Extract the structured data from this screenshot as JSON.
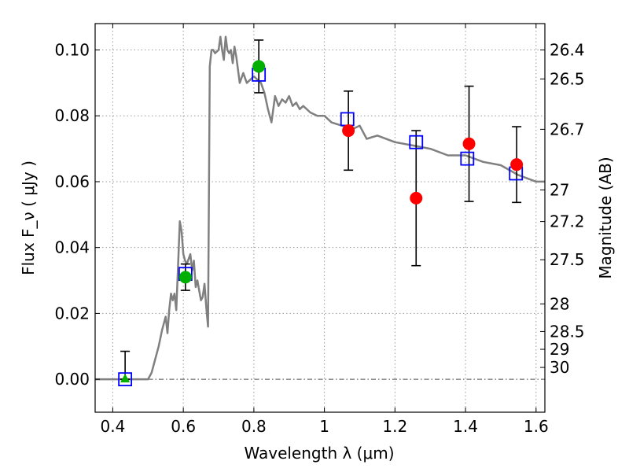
{
  "chart_data": {
    "type": "scatter",
    "xlabel": "Wavelength  λ (μm)",
    "ylabel": "Flux  F_ν  ( μJy )",
    "ylabel_right": "Magnitude (AB)",
    "xlim": [
      0.35,
      1.625
    ],
    "ylim": [
      -0.01,
      0.108
    ],
    "grid": true,
    "x_ticks": [
      {
        "value": 0.4,
        "label": "0.4"
      },
      {
        "value": 0.6,
        "label": "0.6"
      },
      {
        "value": 0.8,
        "label": "0.8"
      },
      {
        "value": 1.0,
        "label": "1"
      },
      {
        "value": 1.2,
        "label": "1.2"
      },
      {
        "value": 1.4,
        "label": "1.4"
      },
      {
        "value": 1.6,
        "label": "1.6"
      }
    ],
    "y_ticks": [
      {
        "value": 0.0,
        "label": "0.00"
      },
      {
        "value": 0.02,
        "label": "0.02"
      },
      {
        "value": 0.04,
        "label": "0.04"
      },
      {
        "value": 0.06,
        "label": "0.06"
      },
      {
        "value": 0.08,
        "label": "0.08"
      },
      {
        "value": 0.1,
        "label": "0.10"
      }
    ],
    "right_ticks": [
      {
        "label": "26.4",
        "flux": 0.1
      },
      {
        "label": "26.5",
        "flux": 0.0912
      },
      {
        "label": "26.7",
        "flux": 0.0759
      },
      {
        "label": "27",
        "flux": 0.0575
      },
      {
        "label": "27.2",
        "flux": 0.0479
      },
      {
        "label": "27.5",
        "flux": 0.0363
      },
      {
        "label": "28",
        "flux": 0.0229
      },
      {
        "label": "28.5",
        "flux": 0.0145
      },
      {
        "label": "29",
        "flux": 0.0091
      },
      {
        "label": "30",
        "flux": 0.0036
      }
    ],
    "zero_line": 0.0,
    "colors": {
      "model": "#808080",
      "model_points": "#0000ff",
      "green": "#00b000",
      "red": "#ff0000",
      "errorbar": "#000000"
    },
    "model_spectrum": {
      "x": [
        0.35,
        0.5,
        0.51,
        0.52,
        0.53,
        0.54,
        0.55,
        0.555,
        0.56,
        0.565,
        0.57,
        0.575,
        0.58,
        0.585,
        0.59,
        0.595,
        0.6,
        0.605,
        0.61,
        0.62,
        0.625,
        0.63,
        0.635,
        0.64,
        0.645,
        0.65,
        0.655,
        0.66,
        0.665,
        0.67,
        0.675,
        0.68,
        0.685,
        0.69,
        0.7,
        0.705,
        0.71,
        0.715,
        0.72,
        0.725,
        0.73,
        0.735,
        0.74,
        0.745,
        0.75,
        0.76,
        0.77,
        0.78,
        0.8,
        0.82,
        0.83,
        0.84,
        0.85,
        0.86,
        0.87,
        0.88,
        0.89,
        0.9,
        0.91,
        0.92,
        0.93,
        0.94,
        0.96,
        0.98,
        1.0,
        1.02,
        1.05,
        1.08,
        1.1,
        1.12,
        1.15,
        1.2,
        1.25,
        1.3,
        1.35,
        1.4,
        1.45,
        1.5,
        1.55,
        1.6,
        1.625
      ],
      "y": [
        0.0,
        0.0,
        0.002,
        0.006,
        0.01,
        0.015,
        0.019,
        0.014,
        0.021,
        0.026,
        0.024,
        0.026,
        0.021,
        0.034,
        0.048,
        0.045,
        0.038,
        0.036,
        0.035,
        0.038,
        0.033,
        0.036,
        0.028,
        0.03,
        0.027,
        0.024,
        0.025,
        0.029,
        0.022,
        0.016,
        0.095,
        0.1,
        0.1,
        0.099,
        0.1,
        0.104,
        0.1,
        0.097,
        0.104,
        0.1,
        0.099,
        0.1,
        0.096,
        0.101,
        0.098,
        0.09,
        0.093,
        0.09,
        0.092,
        0.09,
        0.087,
        0.082,
        0.078,
        0.086,
        0.083,
        0.085,
        0.084,
        0.086,
        0.083,
        0.084,
        0.082,
        0.083,
        0.081,
        0.08,
        0.08,
        0.078,
        0.077,
        0.076,
        0.077,
        0.073,
        0.074,
        0.072,
        0.071,
        0.07,
        0.068,
        0.068,
        0.066,
        0.065,
        0.062,
        0.06,
        0.06
      ]
    },
    "series": [
      {
        "marker": "square",
        "color": "#0000ff",
        "points": [
          {
            "x": 0.435,
            "y": 0.0
          },
          {
            "x": 0.606,
            "y": 0.032
          },
          {
            "x": 0.814,
            "y": 0.0925
          },
          {
            "x": 1.065,
            "y": 0.079
          },
          {
            "x": 1.26,
            "y": 0.072
          },
          {
            "x": 1.405,
            "y": 0.067
          },
          {
            "x": 1.543,
            "y": 0.0625
          }
        ]
      },
      {
        "marker": "circle",
        "color": "#00b000",
        "points": [
          {
            "x": 0.606,
            "y": 0.031,
            "err": 0.004
          },
          {
            "x": 0.814,
            "y": 0.095,
            "err": 0.008
          }
        ]
      },
      {
        "marker": "triangle",
        "color": "#00b000",
        "points": [
          {
            "x": 0.435,
            "y": 0.0,
            "err_up": 0.0085
          }
        ]
      },
      {
        "marker": "circle",
        "color": "#ff0000",
        "points": [
          {
            "x": 1.068,
            "y": 0.0755,
            "err": 0.012
          },
          {
            "x": 1.26,
            "y": 0.055,
            "err": 0.0205
          },
          {
            "x": 1.41,
            "y": 0.0715,
            "err": 0.0175
          },
          {
            "x": 1.545,
            "y": 0.0652,
            "err": 0.0115
          }
        ]
      }
    ]
  }
}
